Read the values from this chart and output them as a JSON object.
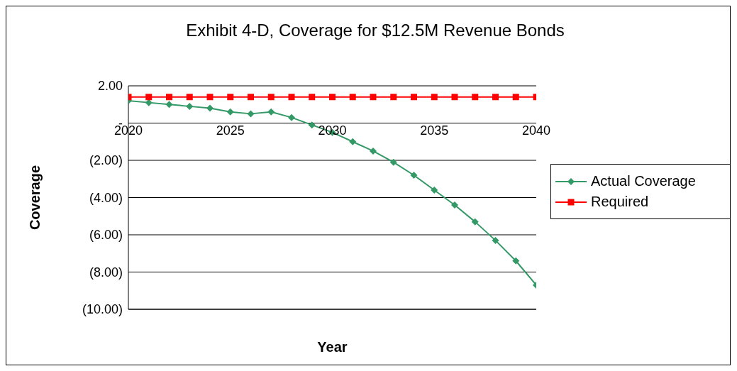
{
  "chart_data": {
    "type": "line",
    "title": "Exhibit 4-D, Coverage for $12.5M Revenue Bonds",
    "xlabel": "Year",
    "ylabel": "Coverage",
    "x": [
      2020,
      2021,
      2022,
      2023,
      2024,
      2025,
      2026,
      2027,
      2028,
      2029,
      2030,
      2031,
      2032,
      2033,
      2034,
      2035,
      2036,
      2037,
      2038,
      2039,
      2040
    ],
    "series": [
      {
        "name": "Actual Coverage",
        "color": "#339966",
        "marker": "diamond",
        "values": [
          1.2,
          1.1,
          1.0,
          0.9,
          0.8,
          0.6,
          0.5,
          0.6,
          0.3,
          -0.1,
          -0.5,
          -1.0,
          -1.5,
          -2.1,
          -2.8,
          -3.6,
          -4.4,
          -5.3,
          -6.3,
          -7.4,
          -8.7
        ]
      },
      {
        "name": "Required",
        "color": "#ff0000",
        "marker": "square",
        "values": [
          1.4,
          1.4,
          1.4,
          1.4,
          1.4,
          1.4,
          1.4,
          1.4,
          1.4,
          1.4,
          1.4,
          1.4,
          1.4,
          1.4,
          1.4,
          1.4,
          1.4,
          1.4,
          1.4,
          1.4,
          1.4
        ]
      }
    ],
    "xlim": [
      2020,
      2040
    ],
    "xticks": [
      2020,
      2025,
      2030,
      2035,
      2040
    ],
    "ylim": [
      -10,
      2
    ],
    "yticks": [
      {
        "value": -10,
        "label": "(10.00)"
      },
      {
        "value": -8,
        "label": "(8.00)"
      },
      {
        "value": -6,
        "label": "(6.00)"
      },
      {
        "value": -4,
        "label": "(4.00)"
      },
      {
        "value": -2,
        "label": "(2.00)"
      },
      {
        "value": 0,
        "label": "-"
      },
      {
        "value": 2,
        "label": "2.00"
      }
    ],
    "grid": "y",
    "legend": "right"
  }
}
